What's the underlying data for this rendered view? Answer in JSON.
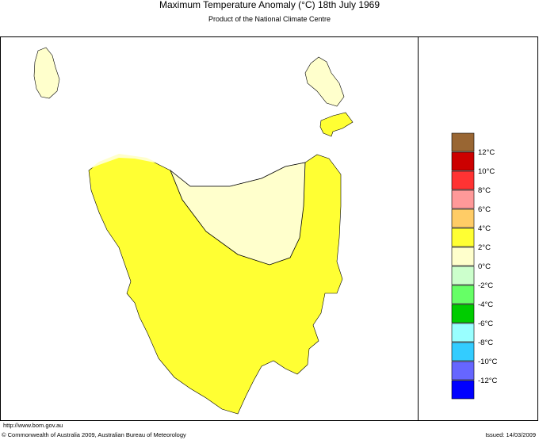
{
  "header": {
    "title": "Maximum Temperature Anomaly (°C)  18th July 1969",
    "subtitle": "Product of the National Climate Centre"
  },
  "legend": {
    "colors": [
      "#996633",
      "#cc0000",
      "#ff3333",
      "#ff9999",
      "#ffcc66",
      "#ffff33",
      "#ffffcc",
      "#ccffcc",
      "#66ff66",
      "#00cc00",
      "#99ffff",
      "#33ccff",
      "#6666ff",
      "#0000ff"
    ],
    "labels": [
      "12°C",
      "10°C",
      "8°C",
      "6°C",
      "4°C",
      "2°C",
      "0°C",
      "-2°C",
      "-4°C",
      "-6°C",
      "-8°C",
      "-10°C",
      "-12°C"
    ]
  },
  "footer": {
    "url": "http://www.bom.gov.au",
    "copyright": "© Commonwealth of Australia 2009, Australian Bureau of Meteorology",
    "issued": "Issued: 14/03/2009"
  }
}
